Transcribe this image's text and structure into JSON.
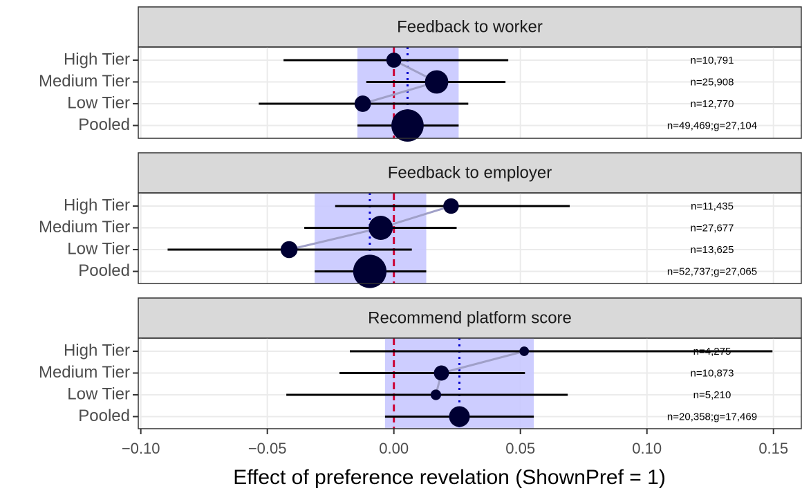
{
  "x_axis": {
    "label": "Effect of preference revelation (ShownPref = 1)",
    "xlim": [
      -0.101,
      0.161
    ],
    "xticks": [
      {
        "value": -0.1,
        "label": "−0.10"
      },
      {
        "value": -0.05,
        "label": "−0.05"
      },
      {
        "value": 0,
        "label": "0.00"
      },
      {
        "value": 0.05,
        "label": "0.05"
      },
      {
        "value": 0.1,
        "label": "0.10"
      },
      {
        "value": 0.15,
        "label": "0.15"
      }
    ],
    "reference_x": 0,
    "reference_color": "#cc0033",
    "pooled_line_color": "#0000cc",
    "band_color": "#c8c8ff",
    "point_color": "#000033",
    "connector_color": "#a0a0c8"
  },
  "chart_data": [
    {
      "type": "dot-whisker",
      "title": "Feedback to worker",
      "categories": [
        "High Tier",
        "Medium Tier",
        "Low Tier",
        "Pooled"
      ],
      "values": [
        0.0,
        0.0169,
        -0.0123,
        0.0054
      ],
      "ci_low": [
        -0.0436,
        -0.0109,
        -0.0534,
        -0.0144
      ],
      "ci_high": [
        0.0452,
        0.0441,
        0.0294,
        0.0256
      ],
      "sizes": [
        10791,
        25908,
        12770,
        49469
      ],
      "size_labels": [
        "n=10,791",
        "n=25,908",
        "n=12,770",
        "n=49,469;g=27,104"
      ]
    },
    {
      "type": "dot-whisker",
      "title": "Feedback to employer",
      "categories": [
        "High Tier",
        "Medium Tier",
        "Low Tier",
        "Pooled"
      ],
      "values": [
        0.0226,
        -0.0052,
        -0.0414,
        -0.0095
      ],
      "ci_low": [
        -0.0232,
        -0.0354,
        -0.0894,
        -0.0313
      ],
      "ci_high": [
        0.0695,
        0.0248,
        0.0071,
        0.0128
      ],
      "sizes": [
        11435,
        27677,
        13625,
        52737
      ],
      "size_labels": [
        "n=11,435",
        "n=27,677",
        "n=13,625",
        "n=52,737;g=27,065"
      ]
    },
    {
      "type": "dot-whisker",
      "title": "Recommend platform score",
      "categories": [
        "High Tier",
        "Medium Tier",
        "Low Tier",
        "Pooled"
      ],
      "values": [
        0.0515,
        0.0188,
        0.0166,
        0.0259
      ],
      "ci_low": [
        -0.0174,
        -0.0215,
        -0.0425,
        -0.0035
      ],
      "ci_high": [
        0.1496,
        0.0518,
        0.0687,
        0.0553
      ],
      "sizes": [
        4275,
        10873,
        5210,
        20358
      ],
      "size_labels": [
        "n=4,275",
        "n=10,873",
        "n=5,210",
        "n=20,358;g=17,469"
      ]
    }
  ]
}
